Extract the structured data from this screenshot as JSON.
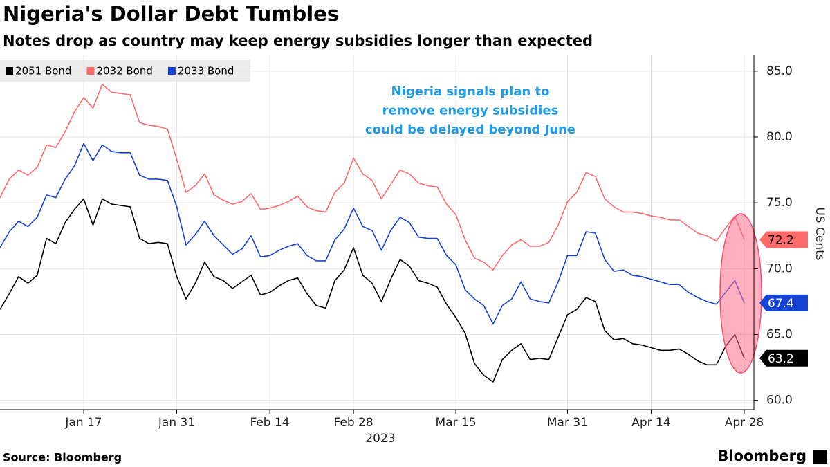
{
  "chart_data": {
    "type": "line",
    "title": "Nigeria's Dollar Debt Tumbles",
    "subtitle": "Notes drop as country may keep energy subsidies longer than expected",
    "x": [
      "2023-01-03",
      "2023-01-04",
      "2023-01-05",
      "2023-01-06",
      "2023-01-09",
      "2023-01-10",
      "2023-01-11",
      "2023-01-12",
      "2023-01-13",
      "2023-01-17",
      "2023-01-18",
      "2023-01-19",
      "2023-01-20",
      "2023-01-23",
      "2023-01-24",
      "2023-01-25",
      "2023-01-26",
      "2023-01-27",
      "2023-01-30",
      "2023-01-31",
      "2023-02-01",
      "2023-02-02",
      "2023-02-03",
      "2023-02-06",
      "2023-02-07",
      "2023-02-08",
      "2023-02-09",
      "2023-02-10",
      "2023-02-13",
      "2023-02-14",
      "2023-02-15",
      "2023-02-16",
      "2023-02-17",
      "2023-02-21",
      "2023-02-22",
      "2023-02-23",
      "2023-02-24",
      "2023-02-27",
      "2023-02-28",
      "2023-03-01",
      "2023-03-02",
      "2023-03-03",
      "2023-03-06",
      "2023-03-07",
      "2023-03-08",
      "2023-03-09",
      "2023-03-10",
      "2023-03-13",
      "2023-03-14",
      "2023-03-15",
      "2023-03-16",
      "2023-03-17",
      "2023-03-20",
      "2023-03-21",
      "2023-03-22",
      "2023-03-23",
      "2023-03-24",
      "2023-03-27",
      "2023-03-28",
      "2023-03-29",
      "2023-03-30",
      "2023-03-31",
      "2023-04-03",
      "2023-04-04",
      "2023-04-05",
      "2023-04-06",
      "2023-04-10",
      "2023-04-11",
      "2023-04-12",
      "2023-04-13",
      "2023-04-14",
      "2023-04-17",
      "2023-04-18",
      "2023-04-19",
      "2023-04-20",
      "2023-04-21",
      "2023-04-24",
      "2023-04-25",
      "2023-04-26",
      "2023-04-27",
      "2023-04-28"
    ],
    "xticks": [
      {
        "value": "2023-01-17",
        "label": "Jan 17"
      },
      {
        "value": "2023-01-31",
        "label": "Jan 31"
      },
      {
        "value": "2023-02-14",
        "label": "Feb 14"
      },
      {
        "value": "2023-02-28",
        "label": "Feb 28"
      },
      {
        "value": "2023-03-15",
        "label": "Mar 15"
      },
      {
        "value": "2023-03-31",
        "label": "Mar 31"
      },
      {
        "value": "2023-04-14",
        "label": "Apr 14"
      },
      {
        "value": "2023-04-28",
        "label": "Apr 28"
      }
    ],
    "xlabel": "2023",
    "ylabel": "US Cents",
    "ylim": [
      59.3,
      86.2
    ],
    "yticks": [
      {
        "value": 60,
        "label": "60.0"
      },
      {
        "value": 65,
        "label": "65.0"
      },
      {
        "value": 70,
        "label": "70.0"
      },
      {
        "value": 75,
        "label": "75.0"
      },
      {
        "value": 80,
        "label": "80.0"
      },
      {
        "value": 85,
        "label": "85.0"
      }
    ],
    "grid": true,
    "legend": "top-left",
    "series": [
      {
        "name": "2051 Bond",
        "color": "#000000",
        "values": [
          66.9,
          68.1,
          69.4,
          68.9,
          69.5,
          72.3,
          71.9,
          73.5,
          74.5,
          75.3,
          73.3,
          75.3,
          74.9,
          74.8,
          74.7,
          72.3,
          71.9,
          72.0,
          71.9,
          69.4,
          67.7,
          68.9,
          70.5,
          69.4,
          69.1,
          68.5,
          69.0,
          69.5,
          68.0,
          68.2,
          68.7,
          69.1,
          69.3,
          68.1,
          67.2,
          67.0,
          69.1,
          69.9,
          71.6,
          69.5,
          68.9,
          67.5,
          69.2,
          70.7,
          70.2,
          69.1,
          68.9,
          68.6,
          67.3,
          66.3,
          65.1,
          62.8,
          61.9,
          61.4,
          63.1,
          63.8,
          64.3,
          63.1,
          63.2,
          63.1,
          64.8,
          66.5,
          66.9,
          67.8,
          67.5,
          65.3,
          64.6,
          64.7,
          64.3,
          64.2,
          64.0,
          63.8,
          63.8,
          63.9,
          63.5,
          63.0,
          62.7,
          62.7,
          64.1,
          65.0,
          63.2
        ]
      },
      {
        "name": "2032 Bond",
        "color": "#ff6b6b",
        "values": [
          75.4,
          76.8,
          77.5,
          77.1,
          77.7,
          79.4,
          79.2,
          80.4,
          81.9,
          83.0,
          82.2,
          84.0,
          83.4,
          83.3,
          83.2,
          81.1,
          80.9,
          80.8,
          80.6,
          78.3,
          75.8,
          76.3,
          77.2,
          75.6,
          75.2,
          74.9,
          75.1,
          75.7,
          74.5,
          74.6,
          74.8,
          75.1,
          75.5,
          74.7,
          74.4,
          74.3,
          75.8,
          76.5,
          78.4,
          77.2,
          76.7,
          75.3,
          76.4,
          77.5,
          77.2,
          76.5,
          76.3,
          76.2,
          74.9,
          74.1,
          72.2,
          70.8,
          70.5,
          69.9,
          71.0,
          71.8,
          72.2,
          71.7,
          71.7,
          72.0,
          73.3,
          75.1,
          75.8,
          77.3,
          77.0,
          75.3,
          74.7,
          74.3,
          74.3,
          74.2,
          74.0,
          73.9,
          73.7,
          73.7,
          73.2,
          72.7,
          72.5,
          72.1,
          73.1,
          74.0,
          72.2
        ]
      },
      {
        "name": "2033 Bond",
        "color": "#1543d4",
        "values": [
          71.6,
          72.8,
          73.6,
          73.2,
          73.9,
          75.6,
          75.4,
          76.8,
          77.8,
          79.5,
          78.2,
          79.4,
          78.9,
          78.8,
          78.8,
          77.1,
          76.8,
          76.8,
          76.7,
          74.7,
          71.8,
          72.6,
          73.6,
          72.5,
          71.8,
          71.1,
          71.5,
          72.5,
          70.9,
          71.0,
          71.4,
          71.7,
          71.9,
          71.0,
          70.6,
          70.6,
          72.2,
          73.0,
          74.6,
          73.2,
          72.9,
          71.4,
          72.9,
          73.9,
          73.5,
          72.4,
          72.3,
          72.3,
          71.0,
          70.3,
          68.4,
          67.7,
          67.2,
          65.8,
          67.2,
          67.7,
          69.0,
          67.7,
          67.5,
          67.4,
          69.0,
          71.0,
          71.0,
          72.8,
          72.7,
          70.7,
          69.8,
          69.9,
          69.5,
          69.4,
          69.2,
          69.0,
          68.8,
          68.8,
          68.2,
          67.8,
          67.5,
          67.3,
          68.2,
          69.1,
          67.4
        ]
      }
    ],
    "annotation": [
      "Nigeria signals plan to",
      "remove energy subsidies",
      "could be delayed beyond June"
    ],
    "annotation_color": "#1e9be6",
    "source": "Source: Bloomberg",
    "brand": "Bloomberg"
  }
}
